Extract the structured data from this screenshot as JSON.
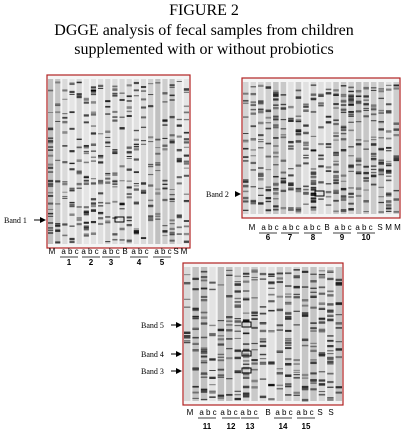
{
  "figure": {
    "title": "FIGURE 2",
    "caption_lines": [
      "DGGE analysis of fecal samples from children",
      "supplemented with or without probiotics"
    ]
  },
  "panels": [
    {
      "lane_labels": [
        "M",
        "a b c",
        "a b c",
        "a b c",
        "B",
        "a b c",
        "a b c",
        "S",
        "M"
      ],
      "group_numbers": [
        "1",
        "2",
        "3",
        "4",
        "5"
      ],
      "bands": [
        {
          "label": "Band 1"
        }
      ]
    },
    {
      "lane_labels": [
        "M",
        "a b c",
        "a b c",
        "a b c",
        "B",
        "a b c",
        "a b c",
        "S",
        "M M"
      ],
      "group_numbers": [
        "6",
        "7",
        "8",
        "9",
        "10"
      ],
      "bands": [
        {
          "label": "Band 2"
        }
      ]
    },
    {
      "lane_labels": [
        "M",
        "a b c",
        "a b c",
        "a b c",
        "B",
        "a b c",
        "a b c",
        "S",
        "S"
      ],
      "group_numbers": [
        "11",
        "12",
        "13",
        "14",
        "15"
      ],
      "bands": [
        {
          "label": "Band 5"
        },
        {
          "label": "Band 4"
        },
        {
          "label": "Band 3"
        }
      ]
    }
  ]
}
